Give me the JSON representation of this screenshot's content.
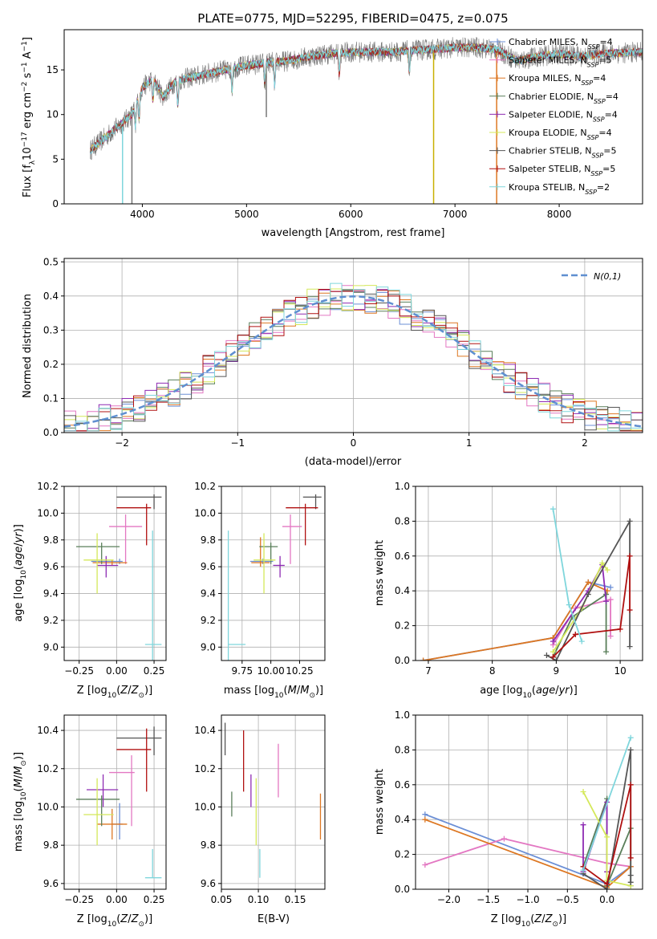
{
  "title": "PLATE=0775, MJD=52295, FIBERID=0475, z=0.075",
  "colors": {
    "chabrier_miles": "#6b8fd6",
    "salpeter_miles": "#e377c2",
    "kroupa_miles": "#dd7722",
    "chabrier_elodie": "#5a7f5a",
    "salpeter_elodie": "#8e2bb3",
    "kroupa_elodie": "#d4e85a",
    "chabrier_stelib": "#555555",
    "salpeter_stelib": "#b01010",
    "kroupa_stelib": "#7fd6dc",
    "gauss": "#5f8fd0",
    "grid": "#b0b0b0"
  },
  "chart_data": [
    {
      "id": "spectrum",
      "type": "line",
      "xlabel": "wavelength [Angstrom, rest frame]",
      "ylabel": "Flux [f_λ10^-17 erg cm^-2 s^-1 A^-1]",
      "xlim": [
        3250,
        8800
      ],
      "ylim": [
        0,
        19.5
      ],
      "xticks": [
        4000,
        5000,
        6000,
        7000,
        8000
      ],
      "yticks": [
        0,
        5,
        10,
        15
      ],
      "grid": false,
      "legend": "right",
      "continuum": {
        "x": [
          3500,
          3600,
          3700,
          3800,
          3900,
          4000,
          4100,
          4200,
          4300,
          4400,
          4600,
          4800,
          5000,
          5200,
          5400,
          5600,
          5800,
          6000,
          6200,
          6400,
          6600,
          6800,
          7000,
          7200,
          7400,
          7600,
          7800,
          8000,
          8200,
          8400,
          8800
        ],
        "y": [
          6,
          7,
          8,
          9,
          10,
          13,
          14,
          12,
          13.5,
          14,
          14.5,
          15,
          15.5,
          15.8,
          16,
          16.5,
          16.8,
          17,
          17,
          17,
          17.2,
          17.3,
          17.5,
          17.5,
          17.3,
          16,
          16.5,
          16.8,
          16.5,
          16.8,
          17
        ]
      },
      "series": [
        {
          "name": "Chabrier MILES",
          "nssp": "4",
          "color_key": "chabrier_miles"
        },
        {
          "name": "Salpeter MILES",
          "nssp": "5",
          "color_key": "salpeter_miles"
        },
        {
          "name": "Kroupa MILES",
          "nssp": "4",
          "color_key": "kroupa_miles"
        },
        {
          "name": "Chabrier ELODIE",
          "nssp": "4",
          "color_key": "chabrier_elodie"
        },
        {
          "name": "Salpeter ELODIE",
          "nssp": "4",
          "color_key": "salpeter_elodie"
        },
        {
          "name": "Kroupa ELODIE",
          "nssp": "4",
          "color_key": "kroupa_elodie"
        },
        {
          "name": "Chabrier STELIB",
          "nssp": "5",
          "color_key": "chabrier_stelib"
        },
        {
          "name": "Salpeter STELIB",
          "nssp": "5",
          "color_key": "salpeter_stelib"
        },
        {
          "name": "Kroupa STELIB",
          "nssp": "2",
          "color_key": "kroupa_stelib"
        }
      ]
    },
    {
      "id": "residuals",
      "type": "area",
      "xlabel": "(data-model)/error",
      "ylabel": "Normed distribution",
      "xlim": [
        -2.5,
        2.5
      ],
      "ylim": [
        0,
        0.51
      ],
      "xticks": [
        -2,
        -1,
        0,
        1,
        2
      ],
      "yticks": [
        0.0,
        0.1,
        0.2,
        0.3,
        0.4,
        0.5
      ],
      "grid": true,
      "legend": "top-right",
      "gauss_label": "N(0,1)",
      "bin_width": 0.1,
      "series_colors": [
        "chabrier_miles",
        "salpeter_miles",
        "kroupa_miles",
        "chabrier_elodie",
        "salpeter_elodie",
        "kroupa_elodie",
        "chabrier_stelib",
        "salpeter_stelib",
        "kroupa_stelib"
      ]
    },
    {
      "id": "age_vs_Z",
      "type": "scatter",
      "xlabel": "Z [log10(Z/Z⊙)]",
      "ylabel": "age  [log10(age/yr)]",
      "xlim": [
        -0.35,
        0.33
      ],
      "ylim": [
        8.9,
        10.2
      ],
      "xticks": [
        -0.25,
        0.0,
        0.25
      ],
      "xtick_labels": [
        "−0.25",
        "0.00",
        "0.25"
      ],
      "yticks": [
        9.0,
        9.2,
        9.4,
        9.6,
        9.8,
        10.0,
        10.2
      ],
      "grid": true,
      "points": [
        {
          "c": "chabrier_miles",
          "x": 0.02,
          "y": 9.64,
          "xe": [
            -0.17,
            0.04
          ],
          "ye": [
            9.62,
            9.66
          ]
        },
        {
          "c": "salpeter_miles",
          "x": 0.06,
          "y": 9.9,
          "xe": [
            -0.05,
            0.17
          ],
          "ye": [
            9.62,
            9.99
          ]
        },
        {
          "c": "kroupa_miles",
          "x": -0.03,
          "y": 9.63,
          "xe": [
            -0.16,
            0.07
          ],
          "ye": [
            9.61,
            9.65
          ]
        },
        {
          "c": "chabrier_elodie",
          "x": -0.1,
          "y": 9.75,
          "xe": [
            -0.27,
            0.02
          ],
          "ye": [
            9.62,
            9.78
          ]
        },
        {
          "c": "salpeter_elodie",
          "x": -0.07,
          "y": 9.61,
          "xe": [
            -0.13,
            0.01
          ],
          "ye": [
            9.52,
            9.68
          ]
        },
        {
          "c": "kroupa_elodie",
          "x": -0.13,
          "y": 9.65,
          "xe": [
            -0.22,
            -0.02
          ],
          "ye": [
            9.4,
            9.85
          ]
        },
        {
          "c": "chabrier_stelib",
          "x": 0.25,
          "y": 10.12,
          "xe": [
            0.0,
            0.3
          ],
          "ye": [
            10.03,
            10.14
          ]
        },
        {
          "c": "salpeter_stelib",
          "x": 0.2,
          "y": 10.04,
          "xe": [
            0.0,
            0.23
          ],
          "ye": [
            9.76,
            10.07
          ]
        },
        {
          "c": "kroupa_stelib",
          "x": 0.24,
          "y": 9.02,
          "xe": [
            0.19,
            0.3
          ],
          "ye": [
            8.9,
            9.87
          ]
        }
      ]
    },
    {
      "id": "age_vs_mass",
      "type": "scatter",
      "xlabel": "mass [log10(M/M⊙)]",
      "ylabel": "",
      "xlim": [
        9.57,
        10.47
      ],
      "ylim": [
        8.9,
        10.2
      ],
      "xticks": [
        9.75,
        10.0,
        10.25
      ],
      "xtick_labels": [
        "9.75",
        "10.00",
        "10.25"
      ],
      "yticks": [
        9.0,
        9.2,
        9.4,
        9.6,
        9.8,
        10.0,
        10.2
      ],
      "grid": true,
      "points": [
        {
          "c": "chabrier_miles",
          "x": 9.93,
          "y": 9.64,
          "xe": [
            9.82,
            10.02
          ],
          "ye": [
            9.62,
            9.66
          ]
        },
        {
          "c": "salpeter_miles",
          "x": 10.17,
          "y": 9.9,
          "xe": [
            10.1,
            10.27
          ],
          "ye": [
            9.62,
            9.99
          ]
        },
        {
          "c": "kroupa_miles",
          "x": 9.91,
          "y": 9.63,
          "xe": [
            9.83,
            9.99
          ],
          "ye": [
            9.6,
            9.82
          ]
        },
        {
          "c": "chabrier_elodie",
          "x": 10.0,
          "y": 9.75,
          "xe": [
            9.9,
            10.06
          ],
          "ye": [
            9.62,
            9.78
          ]
        },
        {
          "c": "salpeter_elodie",
          "x": 10.08,
          "y": 9.61,
          "xe": [
            10.02,
            10.12
          ],
          "ye": [
            9.52,
            9.68
          ]
        },
        {
          "c": "kroupa_elodie",
          "x": 9.94,
          "y": 9.65,
          "xe": [
            9.85,
            10.04
          ],
          "ye": [
            9.4,
            9.85
          ]
        },
        {
          "c": "chabrier_stelib",
          "x": 10.39,
          "y": 10.12,
          "xe": [
            10.28,
            10.44
          ],
          "ye": [
            10.03,
            10.14
          ]
        },
        {
          "c": "salpeter_stelib",
          "x": 10.3,
          "y": 10.04,
          "xe": [
            10.13,
            10.41
          ],
          "ye": [
            9.76,
            10.07
          ]
        },
        {
          "c": "kroupa_stelib",
          "x": 9.63,
          "y": 9.02,
          "xe": [
            9.63,
            9.78
          ],
          "ye": [
            8.9,
            9.87
          ]
        }
      ]
    },
    {
      "id": "weight_vs_age",
      "type": "line",
      "xlabel": "age  [log10(age/yr)]",
      "ylabel": "mass weight",
      "xlim": [
        6.8,
        10.35
      ],
      "ylim": [
        0,
        1.0
      ],
      "xticks": [
        7,
        8,
        9,
        10
      ],
      "yticks": [
        0.0,
        0.2,
        0.4,
        0.6,
        0.8,
        1.0
      ],
      "grid": true,
      "series": [
        {
          "c": "chabrier_miles",
          "x": [
            6.92,
            8.95,
            9.5,
            9.85
          ],
          "y": [
            0.0,
            0.13,
            0.45,
            0.42
          ]
        },
        {
          "c": "salpeter_miles",
          "x": [
            8.95,
            9.3,
            9.85,
            9.85
          ],
          "y": [
            0.09,
            0.3,
            0.35,
            0.14
          ]
        },
        {
          "c": "kroupa_miles",
          "x": [
            6.92,
            8.95,
            9.5,
            9.8
          ],
          "y": [
            0.0,
            0.13,
            0.45,
            0.4
          ]
        },
        {
          "c": "chabrier_elodie",
          "x": [
            8.95,
            9.25,
            9.78,
            9.78
          ],
          "y": [
            0.02,
            0.25,
            0.38,
            0.05
          ]
        },
        {
          "c": "salpeter_elodie",
          "x": [
            8.95,
            9.5,
            9.72,
            9.78
          ],
          "y": [
            0.11,
            0.4,
            0.55,
            0.34
          ]
        },
        {
          "c": "kroupa_elodie",
          "x": [
            8.95,
            9.4,
            9.72,
            9.8
          ],
          "y": [
            0.05,
            0.3,
            0.56,
            0.52
          ]
        },
        {
          "c": "chabrier_stelib",
          "x": [
            8.85,
            9.0,
            9.5,
            10.15,
            10.15
          ],
          "y": [
            0.03,
            0.0,
            0.38,
            0.8,
            0.08
          ]
        },
        {
          "c": "salpeter_stelib",
          "x": [
            8.95,
            9.3,
            10.0,
            10.15,
            10.15
          ],
          "y": [
            0.02,
            0.15,
            0.18,
            0.6,
            0.29
          ]
        },
        {
          "c": "kroupa_stelib",
          "x": [
            8.95,
            9.2,
            9.4
          ],
          "y": [
            0.87,
            0.32,
            0.11
          ]
        }
      ]
    },
    {
      "id": "mass_vs_Z",
      "type": "scatter",
      "xlabel": "Z [log10(Z/Z⊙)]",
      "ylabel": "mass [log10(M/M⊙)]",
      "xlim": [
        -0.35,
        0.33
      ],
      "ylim": [
        9.57,
        10.48
      ],
      "xticks": [
        -0.25,
        0.0,
        0.25
      ],
      "xtick_labels": [
        "−0.25",
        "0.00",
        "0.25"
      ],
      "yticks": [
        9.6,
        9.8,
        10.0,
        10.2,
        10.4
      ],
      "grid": true,
      "points": [
        {
          "c": "chabrier_miles",
          "x": 0.02,
          "y": 9.91,
          "xe": [
            -0.03,
            0.04
          ],
          "ye": [
            9.83,
            10.02
          ]
        },
        {
          "c": "salpeter_miles",
          "x": 0.1,
          "y": 10.18,
          "xe": [
            -0.05,
            0.12
          ],
          "ye": [
            9.9,
            10.27
          ]
        },
        {
          "c": "kroupa_miles",
          "x": -0.03,
          "y": 9.91,
          "xe": [
            -0.13,
            0.07
          ],
          "ye": [
            9.83,
            9.99
          ]
        },
        {
          "c": "chabrier_elodie",
          "x": -0.1,
          "y": 10.04,
          "xe": [
            -0.27,
            0.02
          ],
          "ye": [
            9.9,
            10.06
          ]
        },
        {
          "c": "salpeter_elodie",
          "x": -0.09,
          "y": 10.09,
          "xe": [
            -0.2,
            0.01
          ],
          "ye": [
            10.0,
            10.17
          ]
        },
        {
          "c": "kroupa_elodie",
          "x": -0.13,
          "y": 9.96,
          "xe": [
            -0.22,
            -0.02
          ],
          "ye": [
            9.8,
            10.15
          ]
        },
        {
          "c": "chabrier_stelib",
          "x": 0.25,
          "y": 10.36,
          "xe": [
            0.0,
            0.3
          ],
          "ye": [
            10.27,
            10.42
          ]
        },
        {
          "c": "salpeter_stelib",
          "x": 0.2,
          "y": 10.3,
          "xe": [
            0.0,
            0.23
          ],
          "ye": [
            10.08,
            10.41
          ]
        },
        {
          "c": "kroupa_stelib",
          "x": 0.24,
          "y": 9.63,
          "xe": [
            0.19,
            0.3
          ],
          "ye": [
            9.63,
            9.78
          ]
        }
      ]
    },
    {
      "id": "mass_vs_ebv",
      "type": "scatter",
      "xlabel": "E(B-V)",
      "ylabel": "",
      "xlim": [
        0.05,
        0.19
      ],
      "ylim": [
        9.57,
        10.48
      ],
      "xticks": [
        0.05,
        0.1,
        0.15
      ],
      "xtick_labels": [
        "0.05",
        "0.10",
        "0.15"
      ],
      "yticks": [
        9.6,
        9.8,
        10.0,
        10.2,
        10.4
      ],
      "grid": true,
      "points": [
        {
          "c": "chabrier_stelib",
          "x": 0.055,
          "ye": [
            10.27,
            10.44
          ]
        },
        {
          "c": "chabrier_elodie",
          "x": 0.064,
          "ye": [
            9.95,
            10.08
          ]
        },
        {
          "c": "salpeter_stelib",
          "x": 0.08,
          "ye": [
            10.08,
            10.4
          ]
        },
        {
          "c": "salpeter_elodie",
          "x": 0.09,
          "ye": [
            10.0,
            10.17
          ]
        },
        {
          "c": "kroupa_elodie",
          "x": 0.097,
          "ye": [
            9.8,
            10.15
          ]
        },
        {
          "c": "kroupa_stelib",
          "x": 0.102,
          "ye": [
            9.63,
            9.78
          ]
        },
        {
          "c": "salpeter_miles",
          "x": 0.127,
          "ye": [
            10.05,
            10.33
          ]
        },
        {
          "c": "kroupa_miles",
          "x": 0.184,
          "ye": [
            9.83,
            10.07
          ]
        }
      ]
    },
    {
      "id": "weight_vs_Z",
      "type": "line",
      "xlabel": "Z [log10(Z/Z⊙)]",
      "ylabel": "mass weight",
      "xlim": [
        -2.42,
        0.45
      ],
      "ylim": [
        0,
        1.0
      ],
      "xticks": [
        -2.0,
        -1.5,
        -1.0,
        -0.5,
        0.0
      ],
      "xtick_labels": [
        "−2.0",
        "−1.5",
        "−1.0",
        "−0.5",
        "0.0"
      ],
      "yticks": [
        0.0,
        0.2,
        0.4,
        0.6,
        0.8,
        1.0
      ],
      "grid": true,
      "series": [
        {
          "c": "chabrier_miles",
          "x": [
            -2.3,
            0.0,
            0.3
          ],
          "y": [
            0.43,
            0.03,
            0.13
          ]
        },
        {
          "c": "salpeter_miles",
          "x": [
            -2.3,
            -1.3,
            0.0,
            0.3
          ],
          "y": [
            0.14,
            0.29,
            0.15,
            0.13
          ]
        },
        {
          "c": "kroupa_miles",
          "x": [
            -2.3,
            0.0,
            0.3
          ],
          "y": [
            0.4,
            0.01,
            0.13
          ]
        },
        {
          "c": "chabrier_elodie",
          "x": [
            -0.3,
            0.0,
            0.0,
            0.3,
            0.3
          ],
          "y": [
            0.13,
            0.52,
            0.02,
            0.35,
            0.02
          ]
        },
        {
          "c": "salpeter_elodie",
          "x": [
            -0.3,
            -0.3,
            0.0,
            0.0
          ],
          "y": [
            0.37,
            0.1,
            0.5,
            0.1
          ]
        },
        {
          "c": "kroupa_elodie",
          "x": [
            -0.3,
            0.0,
            0.0,
            0.3
          ],
          "y": [
            0.56,
            0.3,
            0.05,
            0.02
          ]
        },
        {
          "c": "chabrier_stelib",
          "x": [
            -0.3,
            0.0,
            0.3,
            0.3,
            0.3
          ],
          "y": [
            0.09,
            0.0,
            0.8,
            0.08,
            0.04
          ]
        },
        {
          "c": "salpeter_stelib",
          "x": [
            -0.3,
            0.0,
            0.3,
            0.3
          ],
          "y": [
            0.13,
            0.03,
            0.6,
            0.18
          ]
        },
        {
          "c": "kroupa_stelib",
          "x": [
            -0.3,
            0.3
          ],
          "y": [
            0.11,
            0.87
          ]
        }
      ]
    }
  ]
}
